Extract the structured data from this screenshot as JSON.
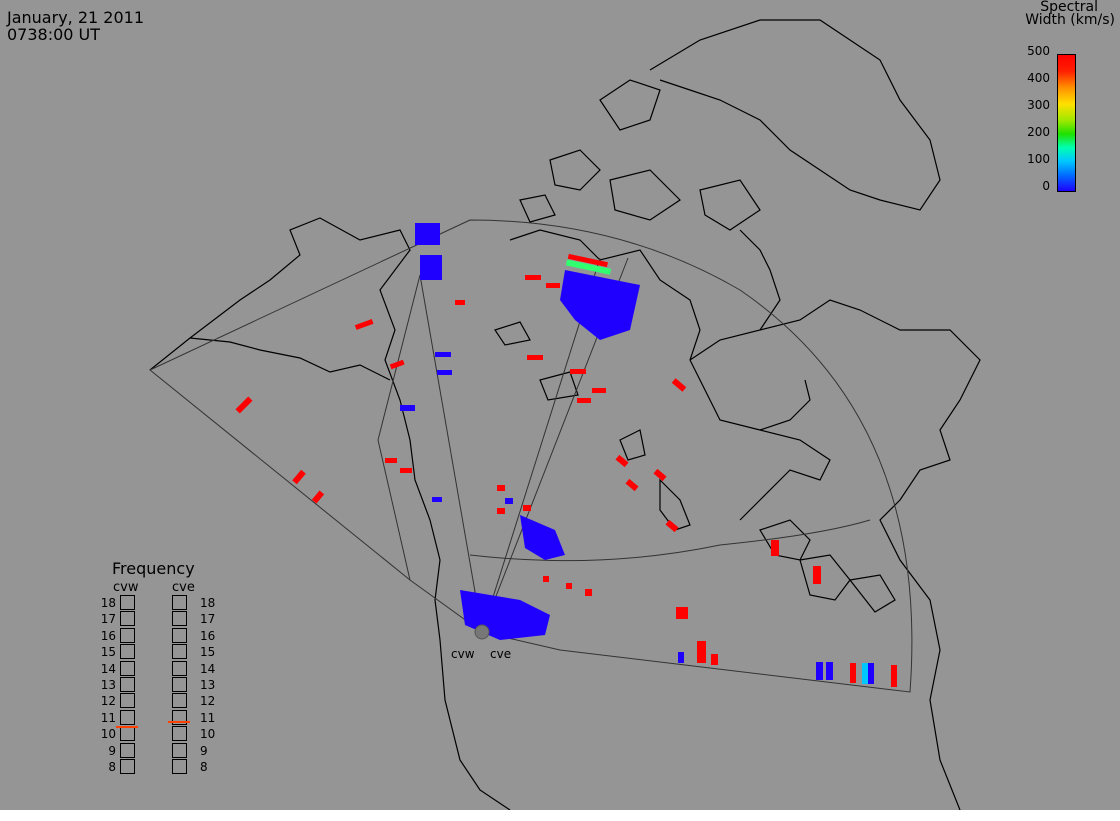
{
  "header": {
    "date": "January, 21 2011",
    "time": "0738:00 UT"
  },
  "colorbar": {
    "title_line1": "Spectral",
    "title_line2": "Width (km/s)",
    "ticks": [
      "500",
      "400",
      "300",
      "200",
      "100",
      "0"
    ],
    "colors": [
      "#1f00ff",
      "#0070ff",
      "#00c8ff",
      "#00ffb0",
      "#20e000",
      "#a0e800",
      "#ffe000",
      "#ff9000",
      "#ff2000",
      "#ff0000"
    ]
  },
  "frequency_panel": {
    "title": "Frequency",
    "radars": [
      {
        "name": "cvw",
        "selected_mhz": 10.5
      },
      {
        "name": "cve",
        "selected_mhz": 10.8
      }
    ],
    "levels": [
      "18",
      "17",
      "16",
      "15",
      "14",
      "13",
      "12",
      "11",
      "10",
      "9",
      "8"
    ]
  },
  "sites": [
    {
      "name": "cvw"
    },
    {
      "name": "cve"
    }
  ],
  "colors": {
    "background": "#959595",
    "coast": "#000000",
    "fov": "#333333",
    "low": "#1f00ff",
    "high": "#ff0000",
    "cyan": "#00c8ff",
    "green": "#30ff70"
  }
}
